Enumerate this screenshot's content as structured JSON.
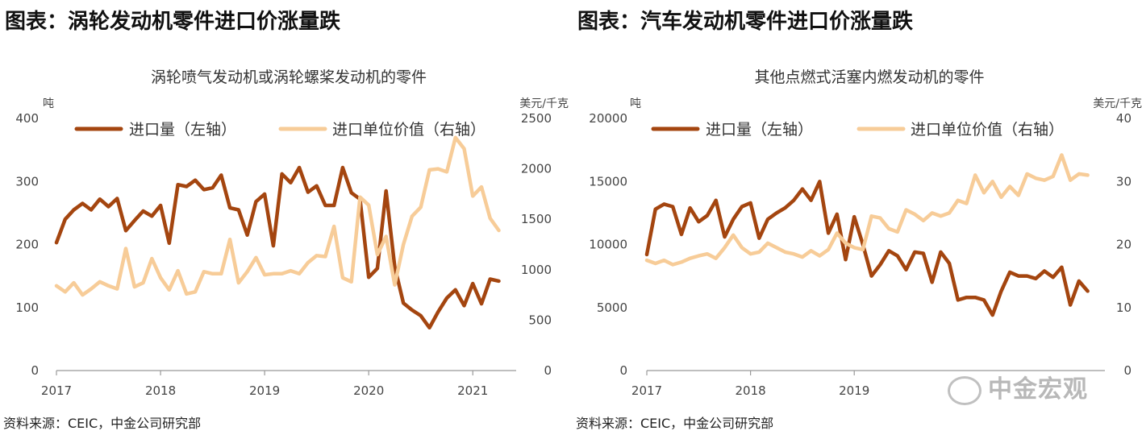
{
  "headings": [
    "图表：涡轮发动机零件进口价涨量跌",
    "图表：汽车发动机零件进口价涨量跌"
  ],
  "source": "资料来源：CEIC，中金公司研究部",
  "watermark": "中金宏观",
  "colors": {
    "left_series": "#a4450f",
    "right_series": "#f7cc98",
    "axis": "#999999"
  },
  "chart_data": [
    {
      "type": "line",
      "title": "涡轮喷气发动机或涡轮螺桨发动机的零件",
      "ylabel_left": "吨",
      "ylabel_right": "美元/千克",
      "ylim_left": [
        0,
        400
      ],
      "ylim_right": [
        0,
        2500
      ],
      "yticks_left": [
        "0",
        "100",
        "200",
        "300",
        "400"
      ],
      "yticks_right": [
        "0",
        "500",
        "1000",
        "1500",
        "2000",
        "2500"
      ],
      "xlim": [
        "2017-01",
        "2021-06"
      ],
      "xticks": [
        "2017",
        "2018",
        "2019",
        "2020",
        "2021"
      ],
      "legend_position": "top",
      "x": [
        "2017-01",
        "2017-02",
        "2017-03",
        "2017-04",
        "2017-05",
        "2017-06",
        "2017-07",
        "2017-08",
        "2017-09",
        "2017-10",
        "2017-11",
        "2017-12",
        "2018-01",
        "2018-02",
        "2018-03",
        "2018-04",
        "2018-05",
        "2018-06",
        "2018-07",
        "2018-08",
        "2018-09",
        "2018-10",
        "2018-11",
        "2018-12",
        "2019-01",
        "2019-02",
        "2019-03",
        "2019-04",
        "2019-05",
        "2019-06",
        "2019-07",
        "2019-08",
        "2019-09",
        "2019-10",
        "2019-11",
        "2019-12",
        "2020-01",
        "2020-02",
        "2020-03",
        "2020-04",
        "2020-05",
        "2020-06",
        "2020-07",
        "2020-08",
        "2020-09",
        "2020-10",
        "2020-11",
        "2020-12",
        "2021-01",
        "2021-02",
        "2021-03",
        "2021-04"
      ],
      "series": [
        {
          "name": "进口量（左轴）",
          "axis": "left",
          "values": [
            203,
            240,
            255,
            265,
            255,
            272,
            260,
            273,
            222,
            238,
            253,
            245,
            262,
            202,
            295,
            292,
            302,
            287,
            290,
            310,
            258,
            255,
            215,
            268,
            280,
            198,
            312,
            298,
            322,
            283,
            293,
            262,
            262,
            322,
            282,
            272,
            148,
            162,
            285,
            165,
            107,
            96,
            87,
            68,
            93,
            115,
            128,
            103,
            138,
            106,
            145,
            142
          ]
        },
        {
          "name": "进口单位价值（右轴）",
          "axis": "right",
          "values": [
            840,
            780,
            870,
            750,
            810,
            880,
            840,
            810,
            1210,
            830,
            870,
            1110,
            920,
            800,
            990,
            760,
            780,
            980,
            960,
            960,
            1300,
            870,
            980,
            1120,
            950,
            960,
            960,
            990,
            960,
            1070,
            1140,
            1130,
            1430,
            920,
            880,
            1720,
            1640,
            1150,
            1330,
            850,
            1250,
            1530,
            1620,
            1990,
            2000,
            1970,
            2310,
            2200,
            1730,
            1820,
            1510,
            1390
          ]
        }
      ]
    },
    {
      "type": "line",
      "title": "其他点燃式活塞内燃发动机的零件",
      "ylabel_left": "吨",
      "ylabel_right": "美元/千克",
      "ylim_left": [
        0,
        20000
      ],
      "ylim_right": [
        0,
        40
      ],
      "yticks_left": [
        "0",
        "5000",
        "10000",
        "15000",
        "20000"
      ],
      "yticks_right": [
        "0",
        "10",
        "20",
        "30",
        "40"
      ],
      "xlim": [
        "2017-01",
        "2021-06"
      ],
      "xticks": [
        "2017",
        "2018",
        "2019"
      ],
      "legend_position": "top",
      "x": [
        "2017-01",
        "2017-02",
        "2017-03",
        "2017-04",
        "2017-05",
        "2017-06",
        "2017-07",
        "2017-08",
        "2017-09",
        "2017-10",
        "2017-11",
        "2017-12",
        "2018-01",
        "2018-02",
        "2018-03",
        "2018-04",
        "2018-05",
        "2018-06",
        "2018-07",
        "2018-08",
        "2018-09",
        "2018-10",
        "2018-11",
        "2018-12",
        "2019-01",
        "2019-02",
        "2019-03",
        "2019-04",
        "2019-05",
        "2019-06",
        "2019-07",
        "2019-08",
        "2019-09",
        "2019-10",
        "2019-11",
        "2019-12",
        "2020-01",
        "2020-02",
        "2020-03",
        "2020-04",
        "2020-05",
        "2020-06",
        "2020-07",
        "2020-08",
        "2020-09",
        "2020-10",
        "2020-11",
        "2020-12",
        "2021-01",
        "2021-02",
        "2021-03",
        "2021-04"
      ],
      "series": [
        {
          "name": "进口量（左轴）",
          "axis": "left",
          "values": [
            9200,
            12800,
            13200,
            13000,
            10800,
            12900,
            11800,
            12300,
            13500,
            10600,
            12000,
            13000,
            13300,
            10500,
            12000,
            12500,
            12900,
            13500,
            14400,
            13500,
            15000,
            10900,
            12400,
            8800,
            12200,
            10000,
            7500,
            8400,
            9500,
            9100,
            8000,
            9400,
            9300,
            7000,
            9400,
            8500,
            5600,
            5800,
            5800,
            5600,
            4400,
            6300,
            7800,
            7500,
            7500,
            7300,
            7900,
            7400,
            8200,
            5200,
            7100,
            6300
          ]
        },
        {
          "name": "进口单位价值（右轴）",
          "axis": "right",
          "values": [
            17.5,
            17.0,
            17.5,
            16.8,
            17.2,
            17.8,
            18.2,
            18.5,
            17.8,
            19.5,
            21.5,
            19.5,
            18.5,
            18.8,
            20.2,
            19.5,
            18.8,
            18.5,
            18.0,
            19.0,
            18.2,
            19.2,
            21.8,
            20.2,
            19.5,
            19.2,
            24.5,
            24.2,
            22.5,
            22.0,
            25.5,
            24.8,
            23.8,
            25.0,
            24.5,
            25.0,
            27.0,
            26.5,
            31.0,
            28.2,
            30.0,
            27.5,
            29.2,
            27.8,
            31.2,
            30.5,
            30.2,
            30.8,
            34.2,
            30.2,
            31.2,
            31.0
          ]
        }
      ]
    }
  ]
}
